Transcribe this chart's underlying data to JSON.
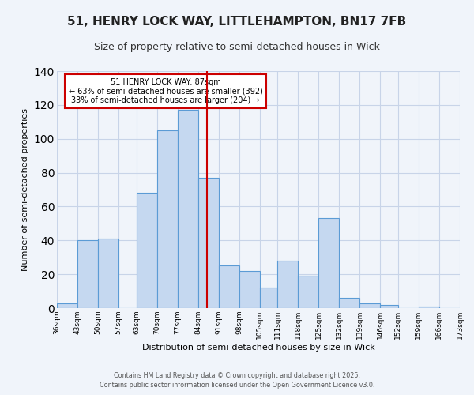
{
  "title": "51, HENRY LOCK WAY, LITTLEHAMPTON, BN17 7FB",
  "subtitle": "Size of property relative to semi-detached houses in Wick",
  "xlabel": "Distribution of semi-detached houses by size in Wick",
  "ylabel": "Number of semi-detached properties",
  "bins": [
    36,
    43,
    50,
    57,
    63,
    70,
    77,
    84,
    91,
    98,
    105,
    111,
    118,
    125,
    132,
    139,
    146,
    152,
    159,
    166,
    173
  ],
  "bin_labels": [
    "36sqm",
    "43sqm",
    "50sqm",
    "57sqm",
    "63sqm",
    "70sqm",
    "77sqm",
    "84sqm",
    "91sqm",
    "98sqm",
    "105sqm",
    "111sqm",
    "118sqm",
    "125sqm",
    "132sqm",
    "139sqm",
    "146sqm",
    "152sqm",
    "159sqm",
    "166sqm",
    "173sqm"
  ],
  "values": [
    3,
    40,
    41,
    0,
    68,
    105,
    117,
    77,
    25,
    22,
    12,
    28,
    19,
    53,
    6,
    3,
    2,
    0,
    1,
    0
  ],
  "bar_color": "#c5d8f0",
  "bar_edge_color": "#5b9bd5",
  "reference_line_x": 87,
  "reference_line_color": "#cc0000",
  "annotation_title": "51 HENRY LOCK WAY: 87sqm",
  "annotation_line1": "← 63% of semi-detached houses are smaller (392)",
  "annotation_line2": "33% of semi-detached houses are larger (204) →",
  "annotation_box_color": "#cc0000",
  "ylim": [
    0,
    140
  ],
  "yticks": [
    0,
    20,
    40,
    60,
    80,
    100,
    120,
    140
  ],
  "background_color": "#f0f4fa",
  "grid_color": "#c8d4e8",
  "footer_line1": "Contains HM Land Registry data © Crown copyright and database right 2025.",
  "footer_line2": "Contains public sector information licensed under the Open Government Licence v3.0.",
  "title_fontsize": 11,
  "subtitle_fontsize": 9,
  "label_fontsize": 8,
  "tick_fontsize": 6.5,
  "footer_fontsize": 5.8,
  "annot_fontsize": 7.0
}
